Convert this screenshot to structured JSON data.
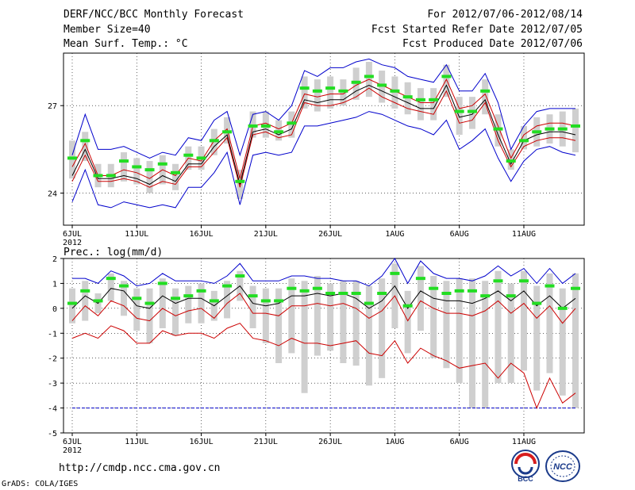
{
  "header": {
    "title": "DERF/NCC/BCC Monthly Forecast",
    "member": "Member Size=40",
    "variable": "Mean Surf. Temp.: °C",
    "range": "For 2012/07/06-2012/08/14",
    "started": "Fcst Started Refer Date 2012/07/05",
    "produced": "Fcst Produced Date 2012/07/06"
  },
  "footer": {
    "url": "http://cmdp.ncc.cma.gov.cn",
    "credit": "GrADS: COLA/IGES",
    "logo1_label": "BCC",
    "logo2_label": "NCC"
  },
  "colors": {
    "box": "#cfcfcf",
    "median": "#22dd22",
    "ens_mean": "#000000",
    "red_lines": "#cc0000",
    "blue_lines": "#0000cc"
  },
  "chart_data": [
    {
      "type": "line",
      "title": "Mean Surf. Temp.: °C",
      "x_day_range": [
        0,
        39
      ],
      "x_tick_days": [
        0,
        5,
        10,
        15,
        20,
        25,
        30,
        35
      ],
      "x_tick_labels": [
        "6JUL",
        "11JUL",
        "16JUL",
        "21JUL",
        "26JUL",
        "1AUG",
        "6AUG",
        "11AUG"
      ],
      "x_year_label": "2012",
      "ylim": [
        22.9,
        28.8
      ],
      "y_ticks": [
        24,
        27
      ],
      "series": [
        {
          "name": "median",
          "values": [
            25.2,
            25.8,
            24.6,
            24.6,
            25.1,
            24.9,
            24.8,
            25.0,
            24.7,
            25.3,
            25.2,
            25.8,
            26.1,
            24.4,
            26.3,
            26.3,
            26.1,
            26.4,
            27.6,
            27.5,
            27.6,
            27.5,
            27.8,
            28.0,
            27.7,
            27.5,
            27.3,
            27.2,
            27.2,
            28.0,
            26.8,
            26.8,
            27.5,
            26.2,
            25.1,
            25.8,
            26.1,
            26.2,
            26.2,
            26.3
          ]
        },
        {
          "name": "ensemble-mean",
          "values": [
            24.6,
            25.5,
            24.5,
            24.5,
            24.6,
            24.5,
            24.3,
            24.6,
            24.4,
            25.0,
            25.0,
            25.6,
            26.0,
            24.3,
            26.1,
            26.2,
            26.0,
            26.2,
            27.2,
            27.1,
            27.2,
            27.2,
            27.5,
            27.7,
            27.5,
            27.3,
            27.1,
            26.9,
            26.9,
            27.7,
            26.6,
            26.7,
            27.2,
            26.0,
            25.0,
            25.8,
            26.0,
            26.1,
            26.1,
            26.0
          ]
        },
        {
          "name": "red-upper",
          "values": [
            24.9,
            25.7,
            24.6,
            24.6,
            24.8,
            24.7,
            24.5,
            24.8,
            24.6,
            25.2,
            25.1,
            25.8,
            26.2,
            24.5,
            26.3,
            26.4,
            26.2,
            26.4,
            27.4,
            27.3,
            27.4,
            27.4,
            27.7,
            27.9,
            27.7,
            27.5,
            27.3,
            27.1,
            27.1,
            27.9,
            26.9,
            27.0,
            27.4,
            26.3,
            25.2,
            26.0,
            26.3,
            26.4,
            26.4,
            26.3
          ]
        },
        {
          "name": "red-lower",
          "values": [
            24.4,
            25.3,
            24.4,
            24.4,
            24.5,
            24.4,
            24.2,
            24.4,
            24.3,
            24.9,
            24.9,
            25.4,
            25.9,
            24.2,
            26.0,
            26.1,
            25.9,
            26.0,
            27.1,
            27.0,
            27.0,
            27.1,
            27.3,
            27.6,
            27.3,
            27.1,
            26.9,
            26.8,
            26.7,
            27.5,
            26.4,
            26.5,
            27.1,
            25.8,
            24.9,
            25.6,
            25.8,
            25.9,
            25.9,
            25.8
          ]
        },
        {
          "name": "blue-upper",
          "values": [
            25.3,
            26.7,
            25.5,
            25.5,
            25.6,
            25.4,
            25.2,
            25.4,
            25.3,
            25.9,
            25.8,
            26.5,
            26.8,
            25.3,
            26.7,
            26.8,
            26.5,
            27.0,
            28.2,
            28.0,
            28.3,
            28.3,
            28.5,
            28.6,
            28.4,
            28.3,
            28.0,
            27.9,
            27.8,
            28.4,
            27.5,
            27.5,
            28.1,
            27.1,
            25.5,
            26.3,
            26.8,
            26.9,
            26.9,
            26.9
          ]
        },
        {
          "name": "blue-lower",
          "values": [
            23.7,
            24.8,
            23.6,
            23.5,
            23.7,
            23.6,
            23.5,
            23.6,
            23.5,
            24.2,
            24.2,
            24.7,
            25.4,
            23.6,
            25.3,
            25.4,
            25.3,
            25.4,
            26.3,
            26.3,
            26.4,
            26.5,
            26.6,
            26.8,
            26.7,
            26.5,
            26.3,
            26.2,
            26.0,
            26.5,
            25.5,
            25.8,
            26.2,
            25.2,
            24.4,
            25.1,
            25.5,
            25.6,
            25.4,
            25.3
          ]
        },
        {
          "name": "box-top",
          "values": [
            25.8,
            26.1,
            25.0,
            25.0,
            25.4,
            25.2,
            25.1,
            25.3,
            25.0,
            25.6,
            25.6,
            26.2,
            26.6,
            24.8,
            26.8,
            26.8,
            26.5,
            26.8,
            28.0,
            27.9,
            28.0,
            27.9,
            28.3,
            28.5,
            28.2,
            28.0,
            27.8,
            27.6,
            27.6,
            28.4,
            27.3,
            27.3,
            27.9,
            26.7,
            25.5,
            26.3,
            26.6,
            26.7,
            26.8,
            26.9
          ]
        },
        {
          "name": "box-bottom",
          "values": [
            24.5,
            25.1,
            24.2,
            24.2,
            24.4,
            24.3,
            24.0,
            24.3,
            24.1,
            24.8,
            24.8,
            25.3,
            25.7,
            23.8,
            25.9,
            25.9,
            25.8,
            25.9,
            26.9,
            26.8,
            26.9,
            27.0,
            27.2,
            27.3,
            27.1,
            26.9,
            26.7,
            26.5,
            26.5,
            27.3,
            26.0,
            26.2,
            26.7,
            25.6,
            24.8,
            25.5,
            25.6,
            25.7,
            25.6,
            25.4
          ]
        }
      ]
    },
    {
      "type": "line",
      "title": "Prec.: log(mm/d)",
      "x_day_range": [
        0,
        39
      ],
      "x_tick_days": [
        0,
        5,
        10,
        15,
        20,
        25,
        30,
        35
      ],
      "x_tick_labels": [
        "6JUL",
        "11JUL",
        "16JUL",
        "21JUL",
        "26JUL",
        "1AUG",
        "6AUG",
        "11AUG"
      ],
      "x_year_label": "2012",
      "ylim": [
        -5,
        2
      ],
      "y_ticks": [
        -5,
        -4,
        -3,
        -2,
        -1,
        0,
        1,
        2
      ],
      "reference_line": {
        "name": "floor",
        "value": -4
      },
      "series": [
        {
          "name": "median",
          "values": [
            0.2,
            0.7,
            0.3,
            1.2,
            0.9,
            0.4,
            0.2,
            1.0,
            0.4,
            0.5,
            0.7,
            0.3,
            0.9,
            1.3,
            0.5,
            0.3,
            0.3,
            0.8,
            0.7,
            0.8,
            0.6,
            0.6,
            0.6,
            0.2,
            0.6,
            1.4,
            0.1,
            1.2,
            0.8,
            0.6,
            0.7,
            0.7,
            0.5,
            1.1,
            0.5,
            1.1,
            0.2,
            0.9,
            0.0,
            0.8
          ]
        },
        {
          "name": "ensemble-mean",
          "values": [
            0.0,
            0.5,
            0.2,
            0.8,
            0.7,
            0.1,
            0.0,
            0.5,
            0.2,
            0.4,
            0.4,
            0.1,
            0.5,
            0.9,
            0.2,
            0.1,
            0.2,
            0.5,
            0.5,
            0.6,
            0.5,
            0.6,
            0.4,
            0.0,
            0.3,
            0.9,
            0.0,
            0.7,
            0.4,
            0.3,
            0.3,
            0.2,
            0.4,
            0.7,
            0.3,
            0.7,
            0.1,
            0.5,
            0.0,
            0.4
          ]
        },
        {
          "name": "red-upper",
          "values": [
            -0.5,
            0.1,
            -0.3,
            0.3,
            0.1,
            -0.4,
            -0.5,
            0.0,
            -0.3,
            -0.1,
            0.0,
            -0.4,
            0.2,
            0.6,
            -0.2,
            -0.2,
            -0.3,
            0.1,
            0.1,
            0.2,
            0.1,
            0.2,
            0.0,
            -0.4,
            -0.1,
            0.5,
            -0.5,
            0.3,
            0.0,
            -0.2,
            -0.2,
            -0.3,
            -0.1,
            0.3,
            -0.2,
            0.2,
            -0.4,
            0.1,
            -0.6,
            0.0
          ]
        },
        {
          "name": "red-lower",
          "values": [
            -1.2,
            -1.0,
            -1.2,
            -0.7,
            -0.9,
            -1.4,
            -1.4,
            -0.9,
            -1.1,
            -1.0,
            -1.0,
            -1.2,
            -0.8,
            -0.6,
            -1.2,
            -1.3,
            -1.5,
            -1.2,
            -1.4,
            -1.4,
            -1.5,
            -1.4,
            -1.3,
            -1.8,
            -1.9,
            -1.3,
            -2.2,
            -1.6,
            -1.9,
            -2.1,
            -2.4,
            -2.3,
            -2.2,
            -2.8,
            -2.2,
            -2.6,
            -4.0,
            -2.8,
            -3.8,
            -3.4
          ]
        },
        {
          "name": "blue-upper",
          "values": [
            1.2,
            1.2,
            1.0,
            1.5,
            1.3,
            0.9,
            1.0,
            1.4,
            1.1,
            1.1,
            1.1,
            1.0,
            1.3,
            1.8,
            1.1,
            1.1,
            1.1,
            1.3,
            1.3,
            1.2,
            1.2,
            1.1,
            1.1,
            0.9,
            1.3,
            2.0,
            1.0,
            1.9,
            1.4,
            1.2,
            1.2,
            1.1,
            1.3,
            1.7,
            1.3,
            1.6,
            1.0,
            1.6,
            1.0,
            1.4
          ]
        },
        {
          "name": "box-top",
          "values": [
            0.8,
            1.1,
            0.6,
            1.4,
            1.1,
            0.8,
            0.8,
            1.2,
            0.8,
            0.9,
            1.0,
            0.7,
            1.1,
            1.5,
            0.9,
            0.8,
            0.8,
            1.2,
            1.1,
            1.3,
            1.0,
            1.1,
            1.1,
            0.9,
            1.2,
            1.8,
            0.7,
            1.7,
            1.3,
            1.1,
            1.2,
            1.2,
            1.1,
            1.5,
            1.0,
            1.5,
            0.9,
            1.4,
            0.8,
            1.4
          ]
        },
        {
          "name": "box-bottom",
          "values": [
            -0.6,
            -0.5,
            -0.2,
            0.3,
            -0.3,
            -0.9,
            -1.4,
            -0.8,
            -1.1,
            -0.6,
            -0.6,
            -0.5,
            -0.4,
            0.3,
            -0.8,
            -1.4,
            -2.2,
            -1.8,
            -3.4,
            -1.9,
            -1.7,
            -2.2,
            -2.3,
            -3.1,
            -2.8,
            -0.8,
            -1.8,
            -0.9,
            -2.0,
            -2.4,
            -3.0,
            -4.0,
            -4.0,
            -3.0,
            -3.0,
            -2.5,
            -3.3,
            -2.6,
            -3.5,
            -4.0
          ]
        }
      ]
    }
  ]
}
